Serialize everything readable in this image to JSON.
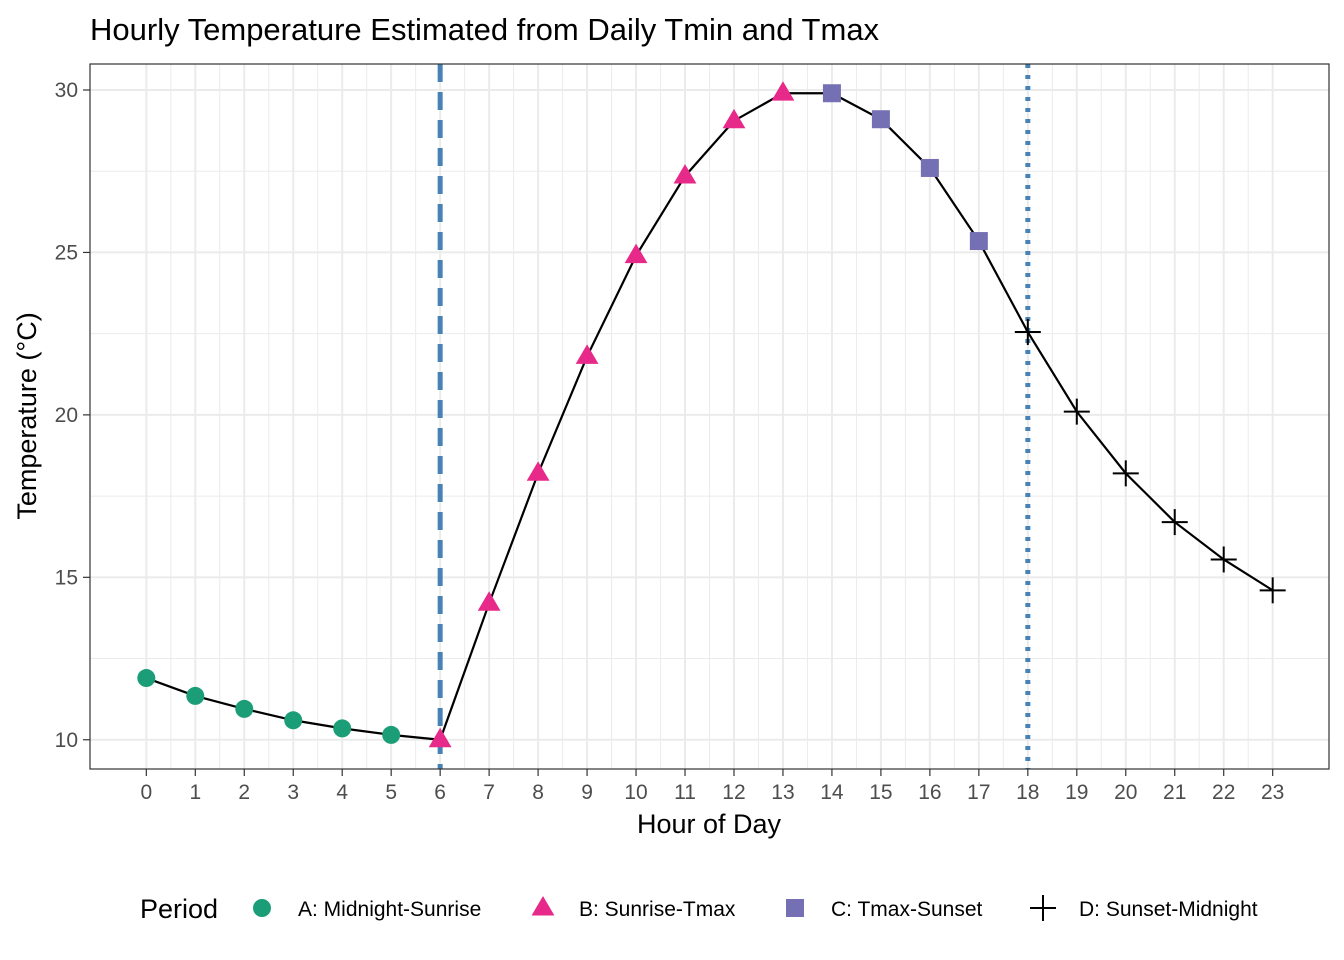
{
  "chart_data": {
    "type": "line",
    "title": "Hourly Temperature Estimated from Daily Tmin and Tmax",
    "xlabel": "Hour of Day",
    "ylabel": "Temperature (°C)",
    "xlim": [
      -1.15,
      24.15
    ],
    "ylim": [
      9.1,
      30.8
    ],
    "x_ticks": [
      0,
      1,
      2,
      3,
      4,
      5,
      6,
      7,
      8,
      9,
      10,
      11,
      12,
      13,
      14,
      15,
      16,
      17,
      18,
      19,
      20,
      21,
      22,
      23
    ],
    "y_ticks": [
      10,
      15,
      20,
      25,
      30
    ],
    "grid": true,
    "legend_title": "Period",
    "legend_position": "bottom",
    "series": [
      {
        "name": "A: Midnight-Sunrise",
        "shape": "circle",
        "color": "#1b9e77",
        "x": [
          0,
          1,
          2,
          3,
          4,
          5
        ],
        "y": [
          11.9,
          11.35,
          10.95,
          10.6,
          10.35,
          10.15
        ]
      },
      {
        "name": "B: Sunrise-Tmax",
        "shape": "triangle",
        "color": "#e7298a",
        "x": [
          6,
          7,
          8,
          9,
          10,
          11,
          12,
          13
        ],
        "y": [
          10.0,
          14.2,
          18.2,
          21.8,
          24.9,
          27.35,
          29.05,
          29.9
        ]
      },
      {
        "name": "C: Tmax-Sunset",
        "shape": "square",
        "color": "#7570b3",
        "x": [
          14,
          15,
          16,
          17
        ],
        "y": [
          29.9,
          29.1,
          27.6,
          25.35
        ]
      },
      {
        "name": "D: Sunset-Midnight",
        "shape": "plus",
        "color": "#000000",
        "x": [
          18,
          19,
          20,
          21,
          22,
          23
        ],
        "y": [
          22.55,
          20.1,
          18.2,
          16.7,
          15.55,
          14.6
        ]
      }
    ],
    "vlines": [
      {
        "x": 6,
        "style": "dashed",
        "color": "#4682b4"
      },
      {
        "x": 18,
        "style": "dotted",
        "color": "#4682b4"
      }
    ]
  }
}
